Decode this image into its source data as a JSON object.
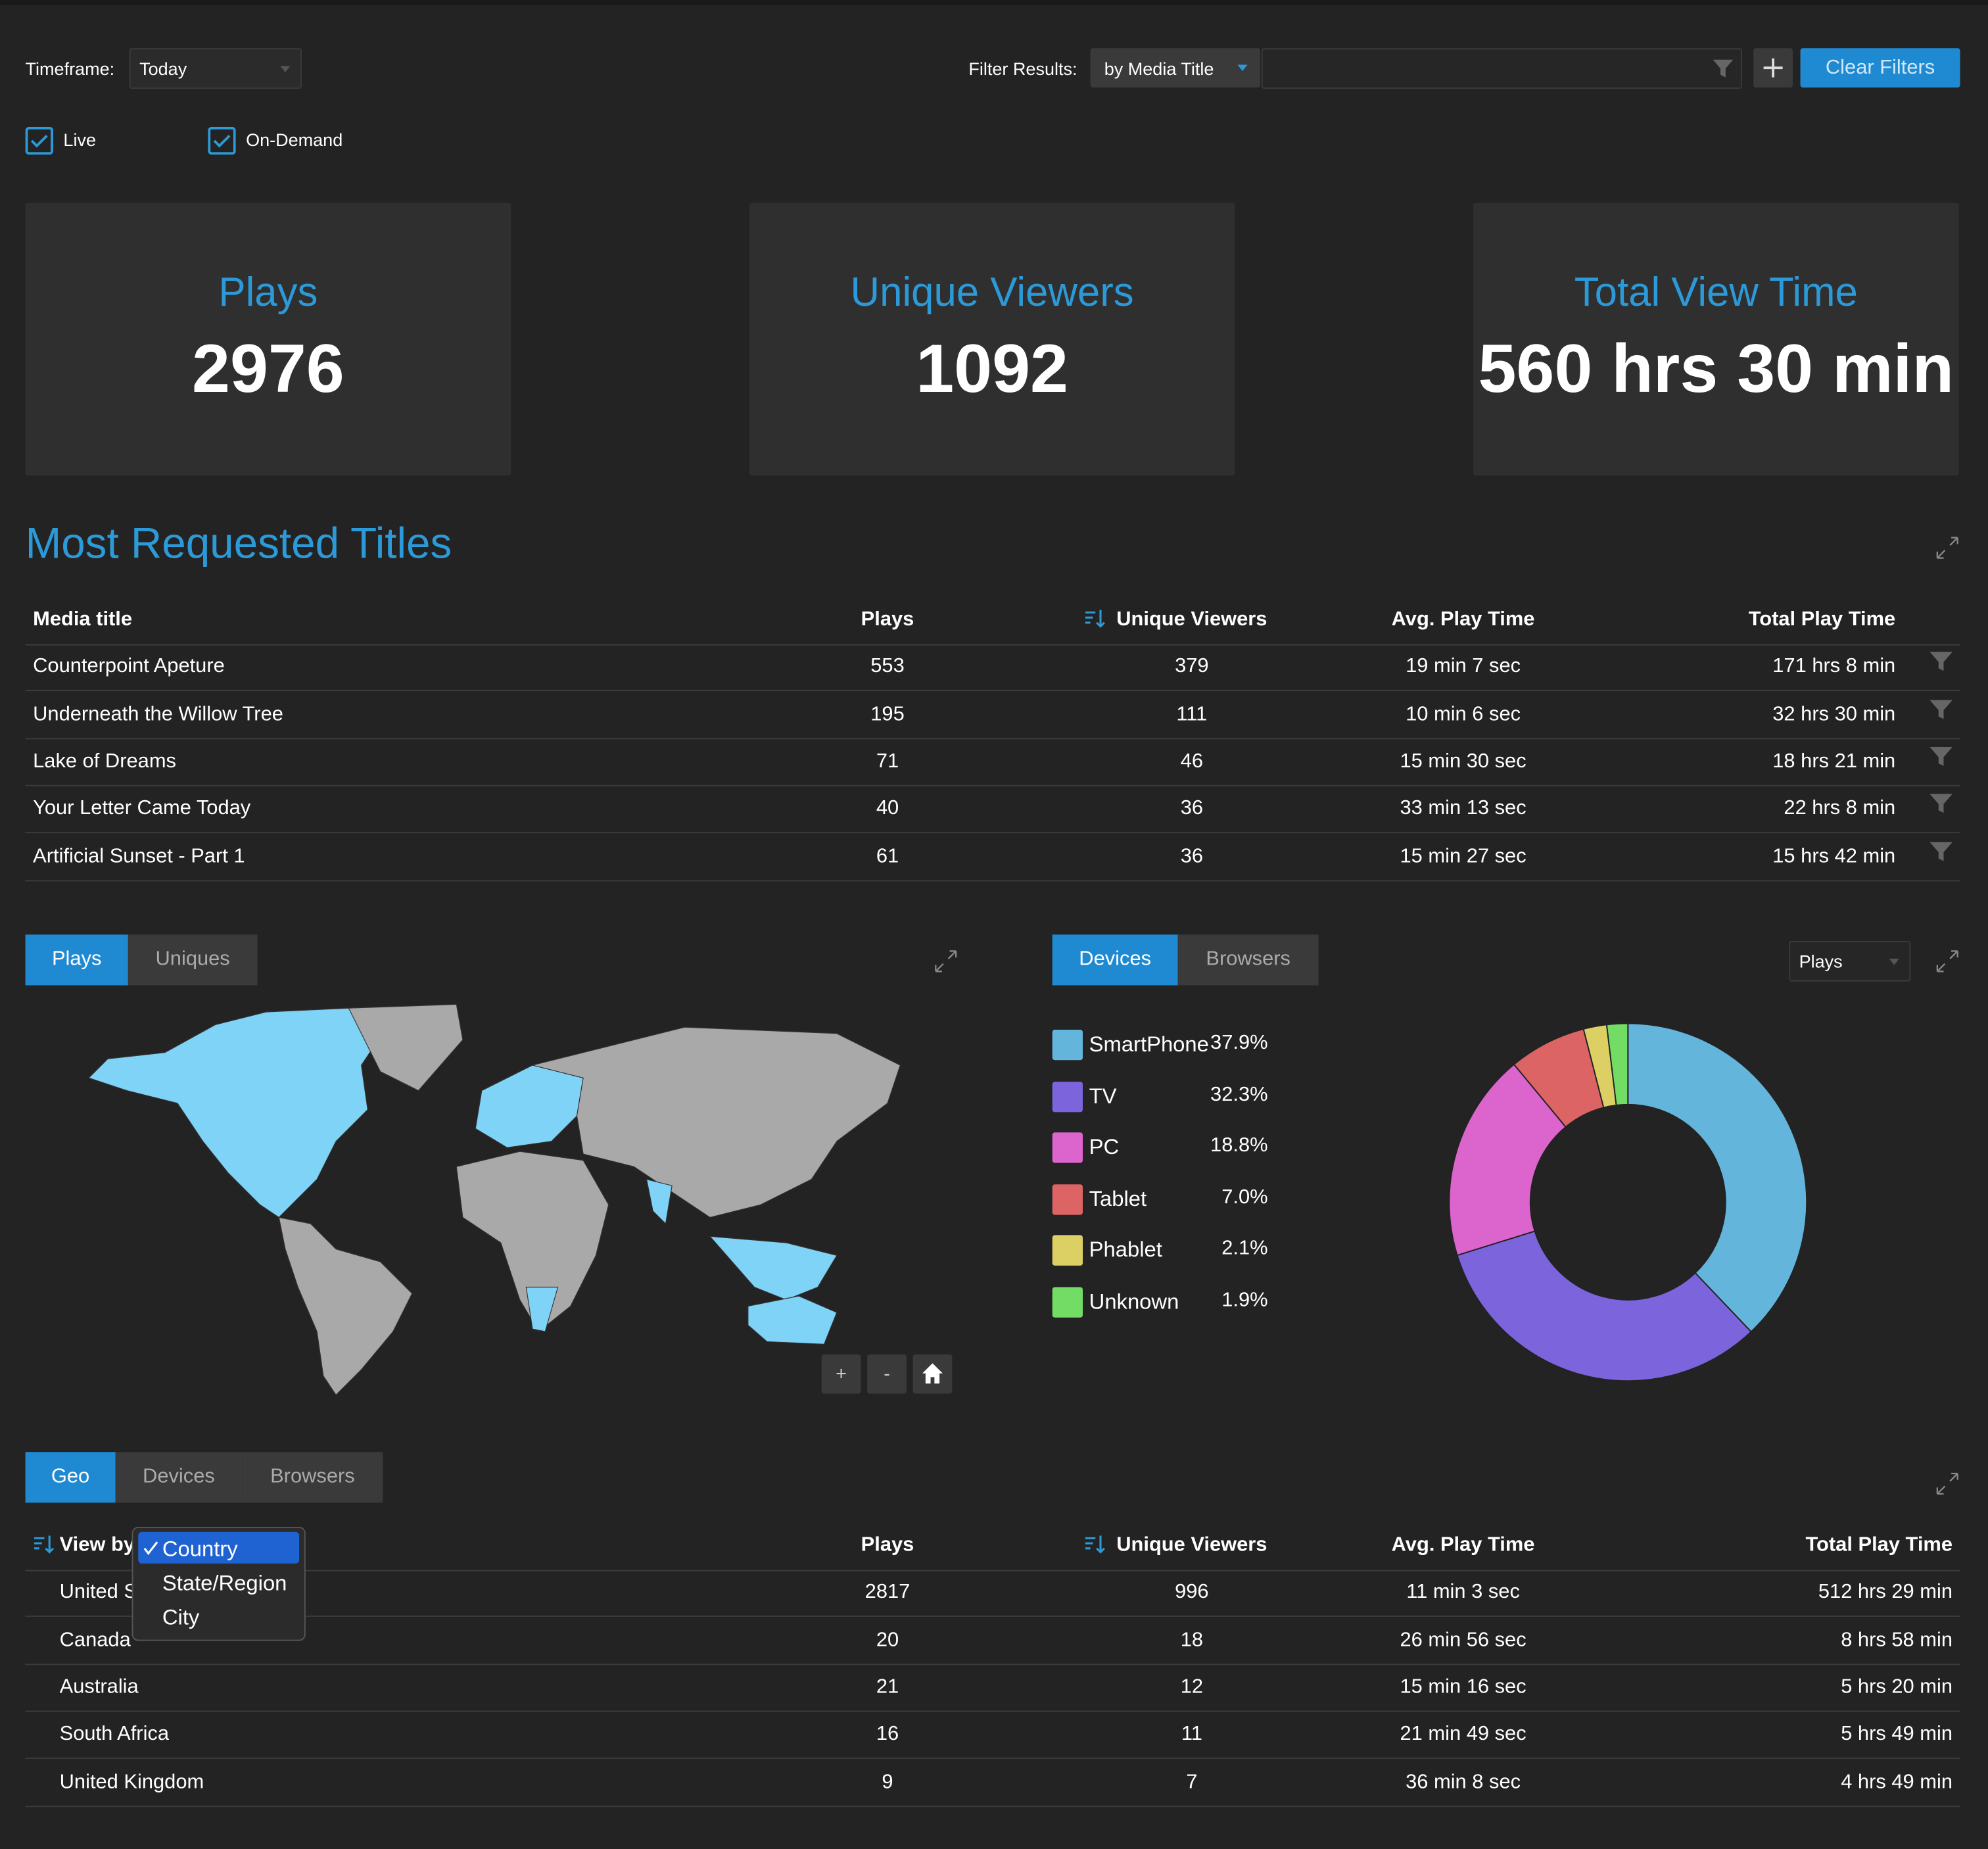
{
  "filters": {
    "timeframe_label": "Timeframe:",
    "timeframe": "Today",
    "filter_label": "Filter Results:",
    "filter_by": "by Media Title",
    "clear": "Clear Filters",
    "live": "Live",
    "on_demand": "On-Demand"
  },
  "kpis": [
    {
      "label": "Plays",
      "value": 2976
    },
    {
      "label": "Unique Viewers",
      "value": 1092
    },
    {
      "label": "Total View Time",
      "value": "560 hrs 30 min"
    }
  ],
  "titles": {
    "heading": "Most Requested Titles",
    "columns": [
      "Media title",
      "Plays",
      "Unique Viewers",
      "Avg. Play Time",
      "Total Play Time"
    ],
    "rows": [
      [
        "Counterpoint Apeture",
        553,
        379,
        "19 min 7 sec",
        "171 hrs 8 min"
      ],
      [
        "Underneath the Willow Tree",
        195,
        111,
        "10 min 6 sec",
        "32 hrs 30 min"
      ],
      [
        "Lake of Dreams",
        71,
        46,
        "15 min 30 sec",
        "18 hrs 21 min"
      ],
      [
        "Your Letter Came Today",
        40,
        36,
        "33 min 13 sec",
        "22 hrs 8 min"
      ],
      [
        "Artificial Sunset - Part 1",
        61,
        36,
        "15 min 27 sec",
        "15 hrs 42 min"
      ]
    ]
  },
  "map": {
    "tabs": [
      "Plays",
      "Uniques"
    ],
    "zoom_in": "+",
    "zoom_out": "-"
  },
  "devices": {
    "tabs": [
      "Devices",
      "Browsers"
    ],
    "metric": "Plays",
    "categories": [
      "SmartPhone",
      "TV",
      "PC",
      "Tablet",
      "Phablet",
      "Unknown"
    ],
    "values": [
      37.9,
      32.3,
      18.8,
      7.0,
      2.1,
      1.9
    ],
    "value_labels": [
      "37.9%",
      "32.3%",
      "18.8%",
      "7.0%",
      "2.1%",
      "1.9%"
    ],
    "colors": [
      "#64b5dc",
      "#7b64dc",
      "#dc64cd",
      "#dc6464",
      "#dcd064",
      "#73dc64"
    ]
  },
  "geo": {
    "tabs": [
      "Geo",
      "Devices",
      "Browsers"
    ],
    "columns": [
      "View by",
      "Plays",
      "Unique Viewers",
      "Avg. Play Time",
      "Total Play Time"
    ],
    "view_options": [
      "Country",
      "State/Region",
      "City"
    ],
    "rows": [
      [
        "United States",
        2817,
        996,
        "11 min 3 sec",
        "512 hrs 29 min"
      ],
      [
        "Canada",
        20,
        18,
        "26 min 56 sec",
        "8 hrs 58 min"
      ],
      [
        "Australia",
        21,
        12,
        "15 min 16 sec",
        "5 hrs 20 min"
      ],
      [
        "South Africa",
        16,
        11,
        "21 min 49 sec",
        "5 hrs 49 min"
      ],
      [
        "United Kingdom",
        9,
        7,
        "36 min 8 sec",
        "4 hrs 49 min"
      ]
    ]
  }
}
